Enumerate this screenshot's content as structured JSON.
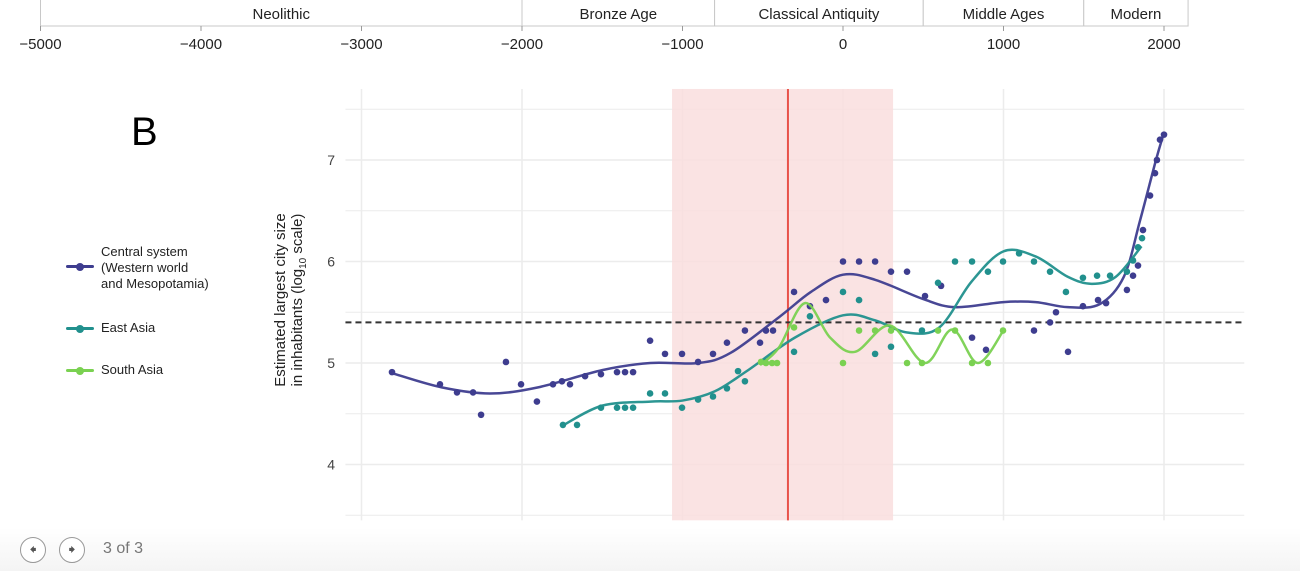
{
  "timeline": {
    "eras": [
      {
        "label": "Neolithic",
        "start": -5000,
        "end": -2000
      },
      {
        "label": "Bronze Age",
        "start": -2000,
        "end": -800
      },
      {
        "label": "Classical Antiquity",
        "start": -800,
        "end": 500
      },
      {
        "label": "Middle Ages",
        "start": 500,
        "end": 1500
      },
      {
        "label": "Modern",
        "start": 1500,
        "end": 2150
      }
    ],
    "ticks": [
      -5000,
      -4000,
      -3000,
      -2000,
      -1000,
      0,
      1000,
      2000
    ],
    "tick_labels": [
      "−5000",
      "−4000",
      "−3000",
      "−2000",
      "−1000",
      "0",
      "1000",
      "2000"
    ]
  },
  "panel_letter": "B",
  "chart_data": {
    "type": "scatter",
    "ylabel_line1": "Estimated largest city size",
    "ylabel_line2_pre": "in inhabitants (log",
    "ylabel_sub": "10",
    "ylabel_line2_post": " scale)",
    "xlim": [
      -3100,
      2500
    ],
    "ylim": [
      3.45,
      7.7
    ],
    "y_ticks": [
      4,
      5,
      6,
      7
    ],
    "y_tick_labels": [
      "4",
      "5",
      "6",
      "7"
    ],
    "x_grid": [
      -3000,
      -2000,
      -1000,
      0,
      1000,
      2000
    ],
    "grid": true,
    "shaded_interval": [
      -1065,
      312
    ],
    "shade_color": "#f9dede",
    "vertical_line": -343,
    "vertical_line_color": "#e8524a",
    "horizontal_dashed_line": 5.4,
    "legend_position": "left",
    "series": [
      {
        "name": "Central system (Western world and Mesopotamia)",
        "name_lines": [
          "Central system",
          "(Western world",
          "and Mesopotamia)"
        ],
        "color": "#3e3d8f",
        "points": [
          [
            -2810,
            4.91
          ],
          [
            -2511,
            4.79
          ],
          [
            -2405,
            4.71
          ],
          [
            -2305,
            4.71
          ],
          [
            -2255,
            4.49
          ],
          [
            -2100,
            5.01
          ],
          [
            -2006,
            4.79
          ],
          [
            -1907,
            4.62
          ],
          [
            -1807,
            4.79
          ],
          [
            -1751,
            4.82
          ],
          [
            -1701,
            4.79
          ],
          [
            -1607,
            4.87
          ],
          [
            -1508,
            4.89
          ],
          [
            -1408,
            4.91
          ],
          [
            -1358,
            4.91
          ],
          [
            -1308,
            4.91
          ],
          [
            -1202,
            5.22
          ],
          [
            -1109,
            5.09
          ],
          [
            -1003,
            5.09
          ],
          [
            -903,
            5.01
          ],
          [
            -810,
            5.09
          ],
          [
            -723,
            5.2
          ],
          [
            -611,
            5.32
          ],
          [
            -517,
            5.2
          ],
          [
            -480,
            5.32
          ],
          [
            -436,
            5.32
          ],
          [
            -305,
            5.7
          ],
          [
            -206,
            5.56
          ],
          [
            -106,
            5.62
          ],
          [
            0,
            6.0
          ],
          [
            100,
            6.0
          ],
          [
            200,
            6.0
          ],
          [
            299,
            5.9
          ],
          [
            399,
            5.9
          ],
          [
            511,
            5.66
          ],
          [
            611,
            5.76
          ],
          [
            804,
            5.25
          ],
          [
            891,
            5.13
          ],
          [
            1190,
            5.32
          ],
          [
            1290,
            5.4
          ],
          [
            1327,
            5.5
          ],
          [
            1402,
            5.11
          ],
          [
            1495,
            5.56
          ],
          [
            1589,
            5.62
          ],
          [
            1639,
            5.59
          ],
          [
            1769,
            5.72
          ],
          [
            1807,
            5.86
          ],
          [
            1838,
            5.96
          ],
          [
            1869,
            6.31
          ],
          [
            1913,
            6.65
          ],
          [
            1944,
            6.87
          ],
          [
            1956,
            7.0
          ],
          [
            1975,
            7.2
          ],
          [
            2000,
            7.25
          ]
        ],
        "fit": [
          [
            -2810,
            4.9
          ],
          [
            -2500,
            4.76
          ],
          [
            -2200,
            4.7
          ],
          [
            -1900,
            4.76
          ],
          [
            -1500,
            4.93
          ],
          [
            -1200,
            5.0
          ],
          [
            -900,
            5.0
          ],
          [
            -700,
            5.1
          ],
          [
            -400,
            5.45
          ],
          [
            -200,
            5.7
          ],
          [
            0,
            5.87
          ],
          [
            200,
            5.82
          ],
          [
            500,
            5.63
          ],
          [
            700,
            5.55
          ],
          [
            1000,
            5.6
          ],
          [
            1200,
            5.6
          ],
          [
            1400,
            5.55
          ],
          [
            1600,
            5.58
          ],
          [
            1750,
            5.85
          ],
          [
            1850,
            6.4
          ],
          [
            1950,
            7.0
          ],
          [
            2000,
            7.27
          ]
        ]
      },
      {
        "name": "East Asia",
        "name_lines": [
          "East Asia"
        ],
        "color": "#21908d",
        "points": [
          [
            -1745,
            4.39
          ],
          [
            -1657,
            4.39
          ],
          [
            -1508,
            4.56
          ],
          [
            -1408,
            4.56
          ],
          [
            -1358,
            4.56
          ],
          [
            -1308,
            4.56
          ],
          [
            -1202,
            4.7
          ],
          [
            -1109,
            4.7
          ],
          [
            -1003,
            4.56
          ],
          [
            -903,
            4.64
          ],
          [
            -810,
            4.67
          ],
          [
            -723,
            4.75
          ],
          [
            -654,
            4.92
          ],
          [
            -611,
            4.82
          ],
          [
            -486,
            5.01
          ],
          [
            -305,
            5.11
          ],
          [
            -206,
            5.46
          ],
          [
            0,
            5.7
          ],
          [
            100,
            5.62
          ],
          [
            200,
            5.09
          ],
          [
            299,
            5.16
          ],
          [
            492,
            5.32
          ],
          [
            592,
            5.79
          ],
          [
            698,
            6.0
          ],
          [
            804,
            6.0
          ],
          [
            903,
            5.9
          ],
          [
            997,
            6.0
          ],
          [
            1097,
            6.08
          ],
          [
            1190,
            6.0
          ],
          [
            1290,
            5.9
          ],
          [
            1389,
            5.7
          ],
          [
            1495,
            5.84
          ],
          [
            1583,
            5.86
          ],
          [
            1664,
            5.86
          ],
          [
            1769,
            5.9
          ],
          [
            1807,
            6.01
          ],
          [
            1838,
            6.14
          ],
          [
            1863,
            6.23
          ]
        ],
        "fit": [
          [
            -1750,
            4.38
          ],
          [
            -1500,
            4.58
          ],
          [
            -1200,
            4.62
          ],
          [
            -1000,
            4.63
          ],
          [
            -800,
            4.72
          ],
          [
            -600,
            4.92
          ],
          [
            -300,
            5.25
          ],
          [
            0,
            5.47
          ],
          [
            200,
            5.42
          ],
          [
            400,
            5.3
          ],
          [
            600,
            5.35
          ],
          [
            800,
            5.8
          ],
          [
            1000,
            6.1
          ],
          [
            1200,
            6.05
          ],
          [
            1400,
            5.85
          ],
          [
            1550,
            5.78
          ],
          [
            1700,
            5.85
          ],
          [
            1860,
            6.15
          ]
        ]
      },
      {
        "name": "South Asia",
        "name_lines": [
          "South Asia"
        ],
        "color": "#7ad151",
        "points": [
          [
            -511,
            5.01
          ],
          [
            -480,
            5.0
          ],
          [
            -442,
            5.0
          ],
          [
            -411,
            5.0
          ],
          [
            -305,
            5.35
          ],
          [
            0,
            5.0
          ],
          [
            100,
            5.32
          ],
          [
            200,
            5.32
          ],
          [
            299,
            5.32
          ],
          [
            399,
            5.0
          ],
          [
            492,
            5.0
          ],
          [
            592,
            5.32
          ],
          [
            698,
            5.32
          ],
          [
            804,
            5.0
          ],
          [
            903,
            5.0
          ],
          [
            997,
            5.32
          ]
        ],
        "fit": [
          [
            -517,
            4.98
          ],
          [
            -400,
            5.15
          ],
          [
            -237,
            5.59
          ],
          [
            -80,
            5.25
          ],
          [
            75,
            5.11
          ],
          [
            293,
            5.37
          ],
          [
            510,
            5.0
          ],
          [
            680,
            5.33
          ],
          [
            840,
            5.0
          ],
          [
            1000,
            5.32
          ]
        ]
      }
    ]
  },
  "footer": {
    "prev_icon": "arrow-left-icon",
    "next_icon": "arrow-right-icon",
    "pager": "3 of 3"
  }
}
